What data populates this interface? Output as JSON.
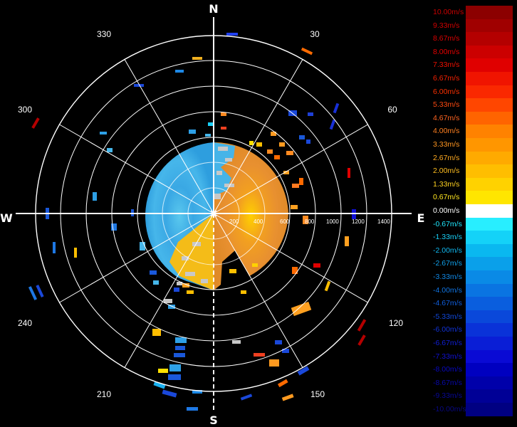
{
  "compass": {
    "north": "N",
    "south": "S",
    "east": "E",
    "west": "W"
  },
  "azimuth_labels": [
    "30",
    "60",
    "120",
    "150",
    "210",
    "240",
    "300",
    "330"
  ],
  "range_labels": [
    "200",
    "400",
    "600",
    "800",
    "1000",
    "1200",
    "1400"
  ],
  "legend": [
    {
      "label": "10.00m/s",
      "color": "#8c0000",
      "text_color": "#c80000"
    },
    {
      "label": "9.33m/s",
      "color": "#a00000",
      "text_color": "#d20000"
    },
    {
      "label": "8.67m/s",
      "color": "#b40000",
      "text_color": "#dc0000"
    },
    {
      "label": "8.00m/s",
      "color": "#cc0000",
      "text_color": "#e60000"
    },
    {
      "label": "7.33m/s",
      "color": "#e00000",
      "text_color": "#f01000"
    },
    {
      "label": "6.67m/s",
      "color": "#f01400",
      "text_color": "#f52000"
    },
    {
      "label": "6.00m/s",
      "color": "#fa2800",
      "text_color": "#fa3000"
    },
    {
      "label": "5.33m/s",
      "color": "#ff4600",
      "text_color": "#ff4a10"
    },
    {
      "label": "4.67m/s",
      "color": "#ff6400",
      "text_color": "#ff6420"
    },
    {
      "label": "4.00m/s",
      "color": "#ff8200",
      "text_color": "#ff8020"
    },
    {
      "label": "3.33m/s",
      "color": "#ff9600",
      "text_color": "#ff9620"
    },
    {
      "label": "2.67m/s",
      "color": "#ffaa00",
      "text_color": "#ffaa20"
    },
    {
      "label": "2.00m/s",
      "color": "#ffbe00",
      "text_color": "#ffbe20"
    },
    {
      "label": "1.33m/s",
      "color": "#ffd200",
      "text_color": "#ffd220"
    },
    {
      "label": "0.67m/s",
      "color": "#ffe600",
      "text_color": "#ffe620"
    },
    {
      "label": "0.00m/s",
      "color": "#ffffff",
      "text_color": "#ffffff"
    },
    {
      "label": "-0.67m/s",
      "color": "#28eeff",
      "text_color": "#20e8ff"
    },
    {
      "label": "-1.33m/s",
      "color": "#14d2f8",
      "text_color": "#18d0f8"
    },
    {
      "label": "-2.00m/s",
      "color": "#0ab8f0",
      "text_color": "#10b8f0"
    },
    {
      "label": "-2.67m/s",
      "color": "#0aa0ea",
      "text_color": "#10a0ea"
    },
    {
      "label": "-3.33m/s",
      "color": "#0a8ae6",
      "text_color": "#1088e6"
    },
    {
      "label": "-4.00m/s",
      "color": "#0a74e2",
      "text_color": "#1074e2"
    },
    {
      "label": "-4.67m/s",
      "color": "#0a5ede",
      "text_color": "#105ede"
    },
    {
      "label": "-5.33m/s",
      "color": "#0a48da",
      "text_color": "#1048da"
    },
    {
      "label": "-6.00m/s",
      "color": "#0a32d8",
      "text_color": "#1032d8"
    },
    {
      "label": "-6.67m/s",
      "color": "#0a1ed6",
      "text_color": "#101ed6"
    },
    {
      "label": "-7.33m/s",
      "color": "#0a0ad4",
      "text_color": "#1010d4"
    },
    {
      "label": "-8.00m/s",
      "color": "#0000c0",
      "text_color": "#0808c0"
    },
    {
      "label": "-8.67m/s",
      "color": "#0000aa",
      "text_color": "#0808aa"
    },
    {
      "label": "-9.33m/s",
      "color": "#000096",
      "text_color": "#080896"
    },
    {
      "label": "-10.00m/s",
      "color": "#000082",
      "text_color": "#080882"
    }
  ]
}
